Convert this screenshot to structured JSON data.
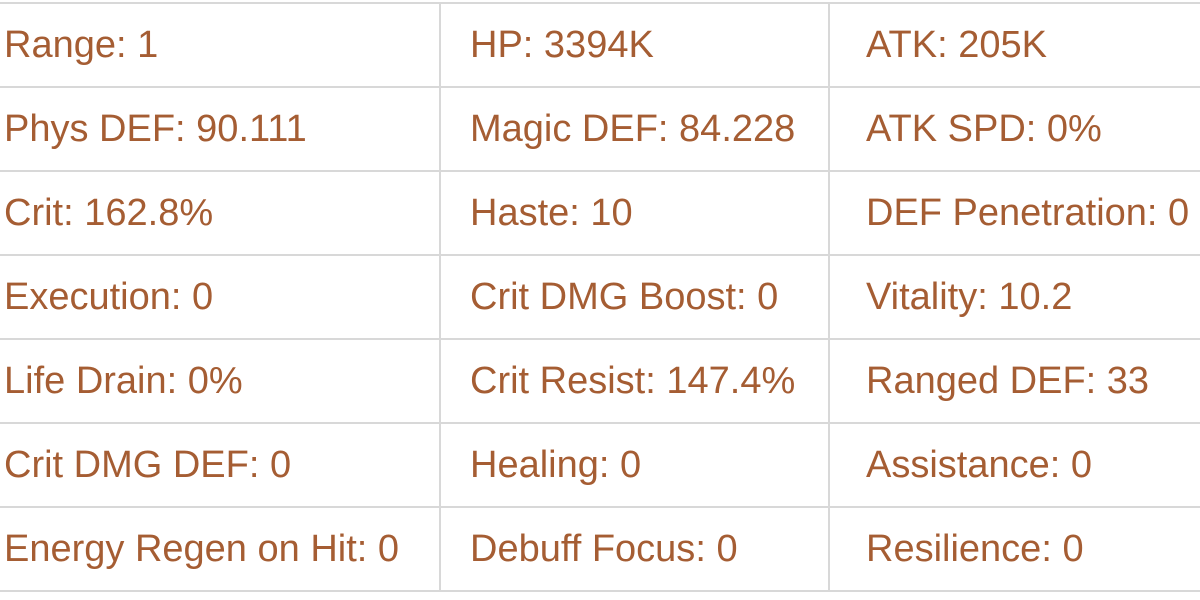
{
  "colors": {
    "text": "#a55d33",
    "border": "#d8d8d8",
    "background": "#ffffff"
  },
  "separator": ": ",
  "stats_table": {
    "rows": [
      {
        "cells": [
          {
            "label": "Range",
            "value": "1"
          },
          {
            "label": "HP",
            "value": "3394K"
          },
          {
            "label": "ATK",
            "value": "205K"
          }
        ]
      },
      {
        "cells": [
          {
            "label": "Phys DEF",
            "value": "90.111"
          },
          {
            "label": "Magic DEF",
            "value": "84.228"
          },
          {
            "label": "ATK SPD",
            "value": "0%"
          }
        ]
      },
      {
        "cells": [
          {
            "label": "Crit",
            "value": "162.8%"
          },
          {
            "label": "Haste",
            "value": "10"
          },
          {
            "label": "DEF Penetration",
            "value": "0"
          }
        ]
      },
      {
        "cells": [
          {
            "label": "Execution",
            "value": "0"
          },
          {
            "label": "Crit DMG Boost",
            "value": "0"
          },
          {
            "label": "Vitality",
            "value": "10.2"
          }
        ]
      },
      {
        "cells": [
          {
            "label": "Life Drain",
            "value": "0%"
          },
          {
            "label": "Crit Resist",
            "value": "147.4%"
          },
          {
            "label": "Ranged DEF",
            "value": "33"
          }
        ]
      },
      {
        "cells": [
          {
            "label": "Crit DMG DEF",
            "value": "0"
          },
          {
            "label": "Healing",
            "value": "0"
          },
          {
            "label": "Assistance",
            "value": "0"
          }
        ]
      },
      {
        "cells": [
          {
            "label": "Energy Regen on Hit",
            "value": "0"
          },
          {
            "label": "Debuff Focus",
            "value": "0"
          },
          {
            "label": "Resilience",
            "value": "0"
          }
        ]
      }
    ]
  }
}
